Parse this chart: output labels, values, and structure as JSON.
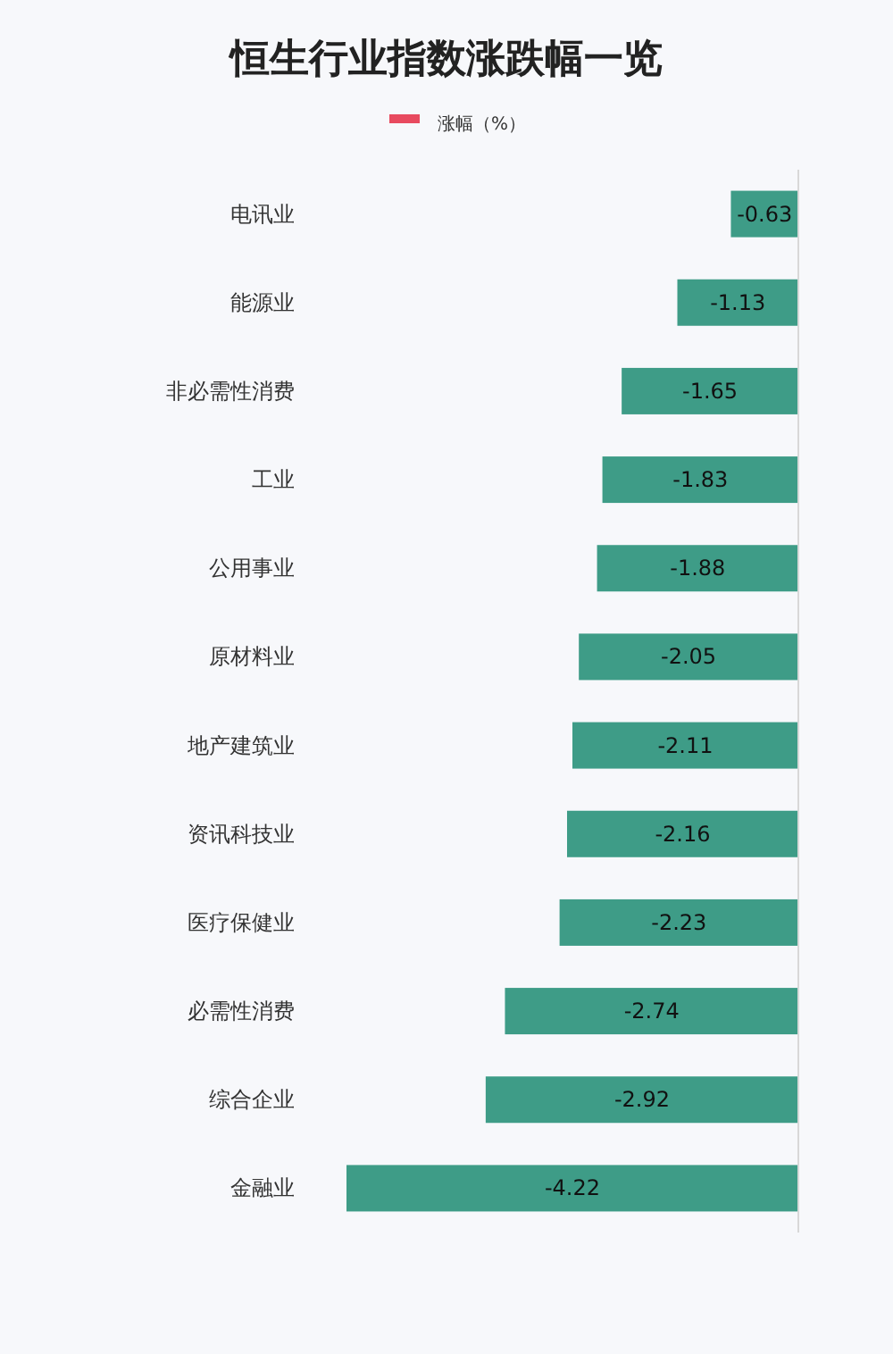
{
  "chart_data": {
    "type": "bar",
    "orientation": "horizontal",
    "title": "恒生行业指数涨跌幅一览",
    "categories": [
      "电讯业",
      "能源业",
      "非必需性消费",
      "工业",
      "公用事业",
      "原材料业",
      "地产建筑业",
      "资讯科技业",
      "医疗保健业",
      "必需性消费",
      "综合企业",
      "金融业"
    ],
    "series": [
      {
        "name": "涨幅（%）",
        "color": "#e84a5f",
        "values": [
          -0.63,
          -1.13,
          -1.65,
          -1.83,
          -1.88,
          -2.05,
          -2.11,
          -2.16,
          -2.23,
          -2.74,
          -2.92,
          -4.22
        ],
        "colors": [
          "#3e9c87",
          "#3e9c87",
          "#3e9c87",
          "#3e9c87",
          "#3e9c87",
          "#3e9c87",
          "#3e9c87",
          "#3e9c87",
          "#3e9c87",
          "#3e9c87",
          "#3e9c87",
          "#3e9c87"
        ]
      }
    ],
    "data_labels": true,
    "legend": "top"
  }
}
